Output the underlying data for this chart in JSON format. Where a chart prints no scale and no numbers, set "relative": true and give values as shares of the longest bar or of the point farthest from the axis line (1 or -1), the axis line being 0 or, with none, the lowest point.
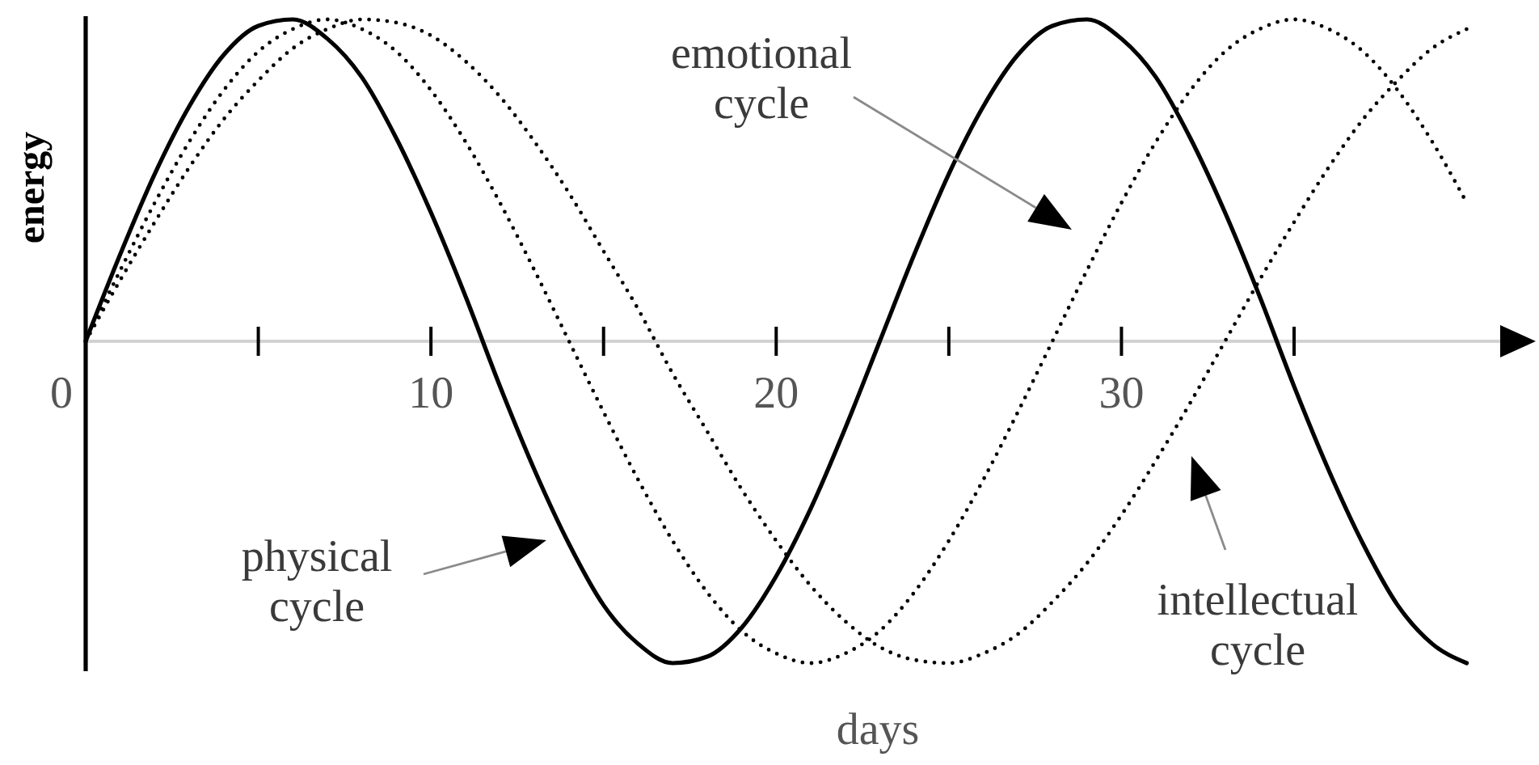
{
  "chart_data": {
    "type": "line",
    "relative": true,
    "xlabel": "days",
    "ylabel": "energy",
    "annotations": [
      "physical cycle",
      "emotional cycle",
      "intellectual cycle"
    ],
    "x": [
      0,
      1,
      2,
      3,
      4,
      5,
      6,
      7,
      8,
      9,
      10,
      11,
      12,
      13,
      14,
      15,
      16,
      17,
      18,
      19,
      20,
      21,
      22,
      23,
      24,
      25,
      26,
      27,
      28,
      29,
      30,
      31,
      32,
      33,
      34,
      35,
      36,
      37,
      38,
      39,
      40
    ],
    "xlim": [
      0,
      42
    ],
    "xticks": [
      0,
      {
        "value": 5,
        "label": null
      },
      10,
      {
        "value": 15,
        "label": null
      },
      20,
      {
        "value": 25,
        "label": null
      },
      30,
      {
        "value": 35,
        "label": null
      }
    ],
    "series": [
      {
        "color": "#000000",
        "line_style": "solid",
        "values": [
          0,
          0.27,
          0.52,
          0.73,
          0.89,
          0.98,
          1.0,
          0.94,
          0.82,
          0.63,
          0.4,
          0.14,
          -0.14,
          -0.4,
          -0.63,
          -0.82,
          -0.94,
          -1.0,
          -0.98,
          -0.89,
          -0.73,
          -0.52,
          -0.27,
          0,
          0.27,
          0.52,
          0.73,
          0.89,
          0.98,
          1.0,
          0.94,
          0.82,
          0.63,
          0.4,
          0.14,
          -0.14,
          -0.4,
          -0.63,
          -0.82,
          -0.94,
          -1.0
        ]
      },
      {
        "color": "#000000",
        "line_style": "dotted",
        "values": [
          0,
          0.22,
          0.43,
          0.62,
          0.78,
          0.9,
          0.97,
          1.0,
          0.97,
          0.9,
          0.78,
          0.62,
          0.43,
          0.22,
          0,
          -0.22,
          -0.43,
          -0.62,
          -0.78,
          -0.9,
          -0.97,
          -1.0,
          -0.97,
          -0.9,
          -0.78,
          -0.62,
          -0.43,
          -0.22,
          0,
          0.22,
          0.43,
          0.62,
          0.78,
          0.9,
          0.97,
          1.0,
          0.97,
          0.9,
          0.78,
          0.62,
          0.43
        ]
      },
      {
        "color": "#000000",
        "line_style": "dotted",
        "values": [
          0,
          0.19,
          0.37,
          0.54,
          0.69,
          0.81,
          0.91,
          0.97,
          1.0,
          0.99,
          0.95,
          0.87,
          0.76,
          0.62,
          0.46,
          0.28,
          0.1,
          -0.1,
          -0.28,
          -0.46,
          -0.62,
          -0.76,
          -0.87,
          -0.95,
          -0.99,
          -1.0,
          -0.97,
          -0.91,
          -0.81,
          -0.69,
          -0.54,
          -0.37,
          -0.19,
          0,
          0.19,
          0.37,
          0.54,
          0.69,
          0.81,
          0.91,
          0.97
        ]
      }
    ]
  }
}
